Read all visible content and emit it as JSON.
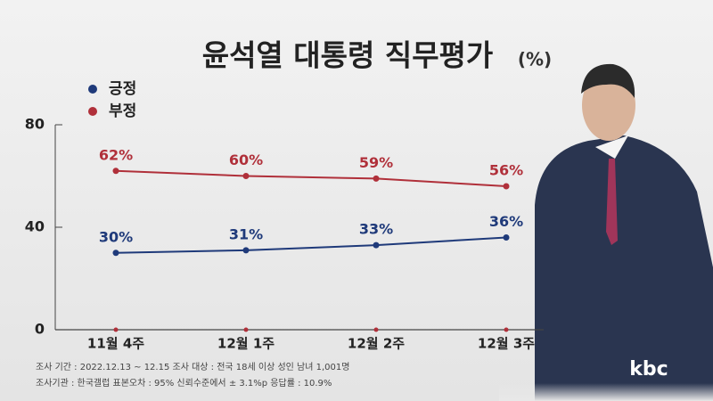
{
  "chart_data": {
    "type": "line",
    "title": "윤석열 대통령 직무평가",
    "unit": "(%)",
    "categories": [
      "11월 4주",
      "12월 1주",
      "12월 2주",
      "12월 3주"
    ],
    "series": [
      {
        "name": "긍정",
        "color": "#1f3a7a",
        "values": [
          30,
          31,
          33,
          36
        ],
        "value_labels": [
          "30%",
          "31%",
          "33%",
          "36%"
        ]
      },
      {
        "name": "부정",
        "color": "#b0303a",
        "values": [
          62,
          60,
          59,
          56
        ],
        "value_labels": [
          "62%",
          "60%",
          "59%",
          "56%"
        ]
      }
    ],
    "ylim": [
      0,
      80
    ],
    "yticks": [
      0,
      40,
      80
    ],
    "notes": [
      "조사 기간 : 2022.12.13 ~ 12.15  조사 대상 : 전국 18세 이상 성인 남녀 1,001명",
      "조사기관 : 한국갤럽  표본오차 : 95% 신뢰수준에서 ± 3.1%p  응답률 : 10.9%"
    ],
    "logo": "kbc"
  }
}
